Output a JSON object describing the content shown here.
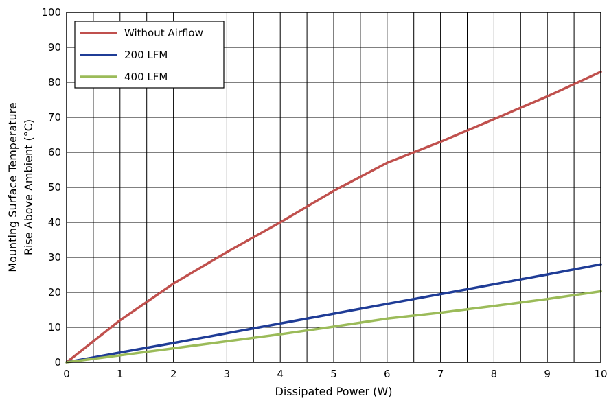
{
  "chart_data": {
    "type": "line",
    "xlabel": "Dissipated Power (W)",
    "ylabel": [
      "Mounting Surface Temperature",
      "Rise Above  Ambient (°C)"
    ],
    "xlim": [
      0,
      10
    ],
    "ylim": [
      0,
      100
    ],
    "x_ticks": [
      "0",
      "1",
      "2",
      "3",
      "4",
      "5",
      "6",
      "7",
      "8",
      "9",
      "10"
    ],
    "y_ticks": [
      "0",
      "10",
      "20",
      "30",
      "40",
      "50",
      "60",
      "70",
      "80",
      "90",
      "100"
    ],
    "grid": true,
    "legend_position": "top-left",
    "series": [
      {
        "name": "Without Airflow",
        "color": "#c0504d",
        "x": [
          0,
          1,
          2,
          3,
          4,
          5,
          6,
          7,
          8,
          9,
          10
        ],
        "y": [
          0,
          12,
          22.5,
          31.5,
          40,
          49,
          57,
          63,
          69.5,
          76,
          83
        ]
      },
      {
        "name": "200 LFM",
        "color": "#1f3c96",
        "x": [
          0,
          1,
          2,
          3,
          4,
          5,
          6,
          7,
          8,
          9,
          10
        ],
        "y": [
          0,
          2.8,
          5.5,
          8.3,
          11.1,
          13.9,
          16.7,
          19.5,
          22.3,
          25.1,
          28
        ]
      },
      {
        "name": "400 LFM",
        "color": "#9bbb59",
        "x": [
          0,
          1,
          2,
          3,
          4,
          5,
          6,
          7,
          8,
          9,
          10
        ],
        "y": [
          0,
          2,
          4,
          6,
          8,
          10.2,
          12.5,
          14.2,
          16.1,
          18.1,
          20.3
        ]
      }
    ]
  }
}
